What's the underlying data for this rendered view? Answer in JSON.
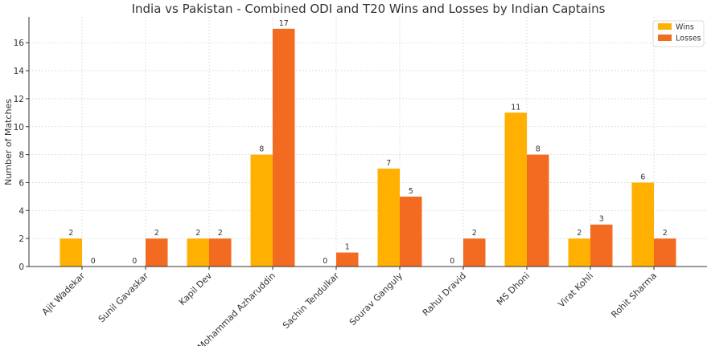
{
  "chart_data": {
    "type": "bar",
    "title": "India vs Pakistan - Combined ODI and T20 Wins and Losses by Indian Captains",
    "xlabel": "",
    "ylabel": "Number of Matches",
    "ylim": [
      0,
      17.85
    ],
    "yticks": [
      0,
      2,
      4,
      6,
      8,
      10,
      12,
      14,
      16
    ],
    "grid": true,
    "legend_position": "top-right",
    "categories": [
      "Ajit Wadekar",
      "Sunil Gavaskar",
      "Kapil Dev",
      "Mohammad Azharuddin",
      "Sachin Tendulkar",
      "Sourav Ganguly",
      "Rahul Dravid",
      "MS Dhoni",
      "Virat Kohli",
      "Rohit Sharma"
    ],
    "series": [
      {
        "name": "Wins",
        "color": "#FFB000",
        "values": [
          2,
          0,
          2,
          8,
          0,
          7,
          0,
          11,
          2,
          6
        ]
      },
      {
        "name": "Losses",
        "color": "#F26B21",
        "values": [
          0,
          2,
          2,
          17,
          1,
          5,
          2,
          8,
          3,
          2
        ]
      }
    ]
  }
}
